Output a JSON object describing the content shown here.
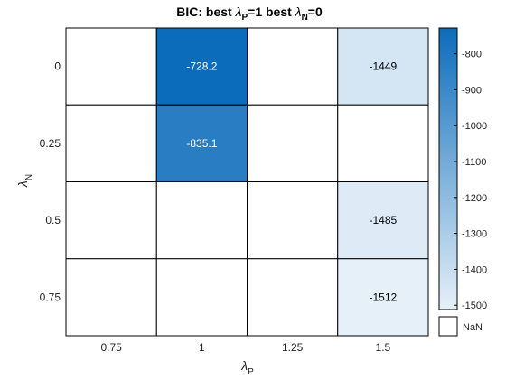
{
  "chart_data": {
    "type": "heatmap",
    "title": {
      "prefix": "BIC: best ",
      "symbol1": "λ",
      "sub1": "P",
      "mid": "=1 best  ",
      "symbol2": "λ",
      "sub2": "N",
      "suffix": "=0"
    },
    "x_categories": [
      "0.75",
      "1",
      "1.25",
      "1.5"
    ],
    "y_categories": [
      "0",
      "0.25",
      "0.5",
      "0.75"
    ],
    "xlabel": {
      "symbol": "λ",
      "sub": "P"
    },
    "ylabel": {
      "symbol": "λ",
      "sub": "N"
    },
    "values": [
      [
        null,
        -728.2,
        null,
        -1449
      ],
      [
        null,
        -835.1,
        null,
        null
      ],
      [
        null,
        null,
        null,
        -1485
      ],
      [
        null,
        null,
        null,
        -1512
      ]
    ],
    "cell_labels": [
      [
        "",
        "-728.2",
        "",
        "-1449"
      ],
      [
        "",
        "-835.1",
        "",
        ""
      ],
      [
        "",
        "",
        "",
        "-1485"
      ],
      [
        "",
        "",
        "",
        "-1512"
      ]
    ],
    "colorbar": {
      "min": -1512,
      "max": -728.2,
      "ticks": [
        -800,
        -900,
        -1000,
        -1100,
        -1200,
        -1300,
        -1400,
        -1500
      ],
      "tick_labels": [
        "-800",
        "-900",
        "-1000",
        "-1100",
        "-1200",
        "-1300",
        "-1400",
        "-1500"
      ],
      "low_color": "#e6f0f9",
      "high_color": "#0b6cbb"
    },
    "nan_label": "NaN",
    "nan_color": "#ffffff",
    "text_color_dark_cells": "#ffffff",
    "text_color_light_cells": "#000000"
  }
}
